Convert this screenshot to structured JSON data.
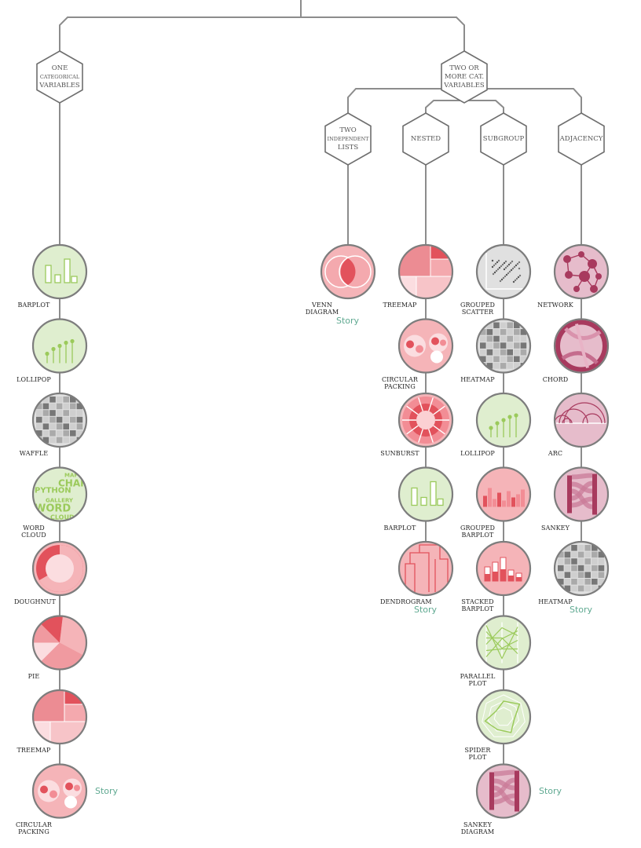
{
  "decision_nodes": [
    {
      "id": "one",
      "lines": [
        "ONE",
        "CATEGORICAL",
        "VARIABLES"
      ]
    },
    {
      "id": "two_more",
      "lines": [
        "TWO OR",
        "MORE CAT.",
        "VARIABLES"
      ]
    },
    {
      "id": "independent",
      "lines": [
        "TWO",
        "INDEPENDENT",
        "LISTS"
      ]
    },
    {
      "id": "nested",
      "lines": [
        "NESTED"
      ]
    },
    {
      "id": "subgroup",
      "lines": [
        "SUBGROUP"
      ]
    },
    {
      "id": "adjacency",
      "lines": [
        "ADJACENCY"
      ]
    }
  ],
  "columns": [
    {
      "id": "one",
      "charts": [
        {
          "label": [
            "BARPLOT"
          ],
          "icon": "barplot-icon",
          "theme": "green"
        },
        {
          "label": [
            "LOLLIPOP"
          ],
          "icon": "lollipop-icon",
          "theme": "green"
        },
        {
          "label": [
            "WAFFLE"
          ],
          "icon": "waffle-icon",
          "theme": "grey"
        },
        {
          "label": [
            "WORD",
            "CLOUD"
          ],
          "icon": "wordcloud-icon",
          "theme": "green"
        },
        {
          "label": [
            "DOUGHNUT"
          ],
          "icon": "doughnut-icon",
          "theme": "red"
        },
        {
          "label": [
            "PIE"
          ],
          "icon": "pie-icon",
          "theme": "red"
        },
        {
          "label": [
            "TREEMAP"
          ],
          "icon": "treemap-icon",
          "theme": "red"
        },
        {
          "label": [
            "CIRCULAR",
            "PACKING"
          ],
          "icon": "circular-packing-icon",
          "theme": "red"
        }
      ],
      "story": "Story"
    },
    {
      "id": "independent",
      "charts": [
        {
          "label": [
            "VENN",
            "DIAGRAM"
          ],
          "icon": "venn-icon",
          "theme": "red"
        }
      ],
      "story": "Story"
    },
    {
      "id": "nested",
      "charts": [
        {
          "label": [
            "TREEMAP"
          ],
          "icon": "treemap-icon",
          "theme": "red"
        },
        {
          "label": [
            "CIRCULAR",
            "PACKING"
          ],
          "icon": "circular-packing-icon",
          "theme": "red"
        },
        {
          "label": [
            "SUNBURST"
          ],
          "icon": "sunburst-icon",
          "theme": "red"
        },
        {
          "label": [
            "BARPLOT"
          ],
          "icon": "barplot-icon",
          "theme": "green"
        },
        {
          "label": [
            "DENDROGRAM"
          ],
          "icon": "dendrogram-icon",
          "theme": "red"
        }
      ],
      "story": "Story"
    },
    {
      "id": "subgroup",
      "charts": [
        {
          "label": [
            "GROUPED",
            "SCATTER"
          ],
          "icon": "scatter-icon",
          "theme": "grey"
        },
        {
          "label": [
            "HEATMAP"
          ],
          "icon": "heatmap-icon",
          "theme": "grey"
        },
        {
          "label": [
            "LOLLIPOP"
          ],
          "icon": "lollipop-icon",
          "theme": "green"
        },
        {
          "label": [
            "GROUPED",
            "BARPLOT"
          ],
          "icon": "grouped-barplot-icon",
          "theme": "red"
        },
        {
          "label": [
            "STACKED",
            "BARPLOT"
          ],
          "icon": "stacked-barplot-icon",
          "theme": "red"
        },
        {
          "label": [
            "PARALLEL",
            "PLOT"
          ],
          "icon": "parallel-icon",
          "theme": "green"
        },
        {
          "label": [
            "SPIDER",
            "PLOT"
          ],
          "icon": "spider-icon",
          "theme": "green"
        },
        {
          "label": [
            "SANKEY",
            "DIAGRAM"
          ],
          "icon": "sankey-icon",
          "theme": "mauve"
        }
      ],
      "story": "Story"
    },
    {
      "id": "adjacency",
      "charts": [
        {
          "label": [
            "NETWORK"
          ],
          "icon": "network-icon",
          "theme": "mauve"
        },
        {
          "label": [
            "CHORD"
          ],
          "icon": "chord-icon",
          "theme": "mauve"
        },
        {
          "label": [
            "ARC"
          ],
          "icon": "arc-icon",
          "theme": "mauve"
        },
        {
          "label": [
            "SANKEY"
          ],
          "icon": "sankey-icon",
          "theme": "mauve"
        },
        {
          "label": [
            "HEATMAP"
          ],
          "icon": "heatmap-icon",
          "theme": "grey"
        }
      ],
      "story": "Story"
    }
  ],
  "wordcloud_words": [
    "PYTHON",
    "CHART",
    "WORD",
    "GALLERY",
    "CLOUD",
    "MAP"
  ],
  "colors": {
    "line": "#8c8c8c",
    "hex_stroke": "#6e6e6e",
    "red_bg": "#f5b4b8",
    "red": "#e2525c",
    "red_light": "#fbdde0",
    "green_bg": "#dfeecf",
    "green": "#9bca5b",
    "grey_bg": "#e0e0e0",
    "grey": "#9a9a9a",
    "mauve_bg": "#e6bccb",
    "mauve": "#a83a5e",
    "story": "#5fa991"
  }
}
